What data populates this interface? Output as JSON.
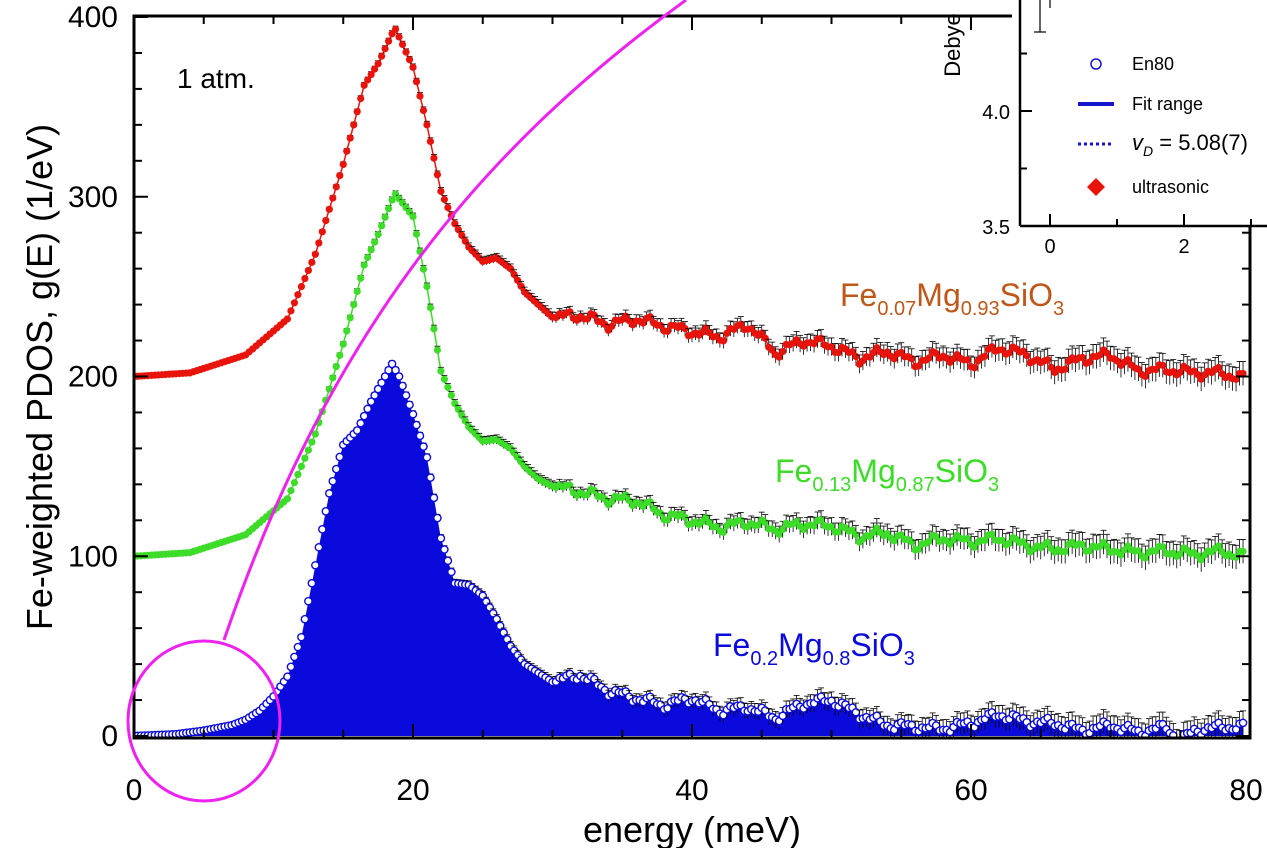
{
  "chart_data": [
    {
      "type": "scatter",
      "title": "",
      "xlabel": "energy (meV)",
      "ylabel": "Fe-weighted PDOS, g(E) (1/eV)",
      "xlim": [
        0,
        80
      ],
      "ylim": [
        -10,
        400
      ],
      "x_ticks": [
        0,
        20,
        40,
        60,
        80
      ],
      "y_ticks": [
        0,
        100,
        200,
        300,
        400
      ],
      "annotation": "1 atm.",
      "grid": false,
      "colors": {
        "red": "#e8140c",
        "green": "#3cdc28",
        "blue": "#0a0adc",
        "magenta": "#ee22ee",
        "red_label": "#c0571a"
      },
      "series": [
        {
          "name_parts": [
            "Fe",
            "0.07",
            "Mg",
            "0.93",
            "SiO",
            "3"
          ],
          "marker": "filled",
          "offset": 200,
          "x": [
            0,
            4,
            8,
            11,
            13,
            15,
            16.5,
            17.5,
            18.7,
            20,
            21,
            22,
            23,
            24,
            25,
            26,
            27,
            28,
            29,
            30,
            32,
            34,
            36,
            38,
            40,
            42,
            44,
            46,
            48,
            50,
            52,
            54,
            56,
            58,
            60,
            62,
            64,
            66,
            68,
            70,
            72,
            74,
            76,
            78,
            79.5
          ],
          "y": [
            200,
            202,
            212,
            232,
            268,
            318,
            362,
            374,
            394,
            372,
            340,
            303,
            285,
            272,
            264,
            266,
            260,
            247,
            240,
            233,
            234,
            229,
            232,
            228,
            225,
            222,
            229,
            213,
            220,
            217,
            210,
            214,
            208,
            212,
            207,
            216,
            212,
            204,
            210,
            212,
            203,
            204,
            202,
            202,
            199
          ]
        },
        {
          "name_parts": [
            "Fe",
            "0.13",
            "Mg",
            "0.87",
            "SiO",
            "3"
          ],
          "marker": "filled",
          "offset": 100,
          "x": [
            0,
            4,
            8,
            11,
            13,
            15,
            16.5,
            17.5,
            18.7,
            20,
            21,
            22,
            23,
            24,
            25,
            26,
            27,
            28,
            29,
            30,
            32,
            34,
            36,
            38,
            40,
            42,
            44,
            46,
            48,
            50,
            52,
            54,
            56,
            58,
            60,
            62,
            64,
            66,
            68,
            70,
            72,
            74,
            76,
            78,
            79.5
          ],
          "y": [
            100,
            102,
            112,
            132,
            168,
            218,
            262,
            279,
            302,
            289,
            250,
            203,
            185,
            172,
            164,
            165,
            160,
            150,
            143,
            139,
            136,
            132,
            131,
            123,
            120,
            116,
            119,
            115,
            118,
            117,
            111,
            113,
            106,
            110,
            108,
            110,
            106,
            104,
            106,
            104,
            102,
            103,
            101,
            103,
            100
          ]
        },
        {
          "name_parts": [
            "Fe",
            "0.2",
            "Mg",
            "0.8",
            "SiO",
            "3"
          ],
          "marker": "open",
          "filled_area": true,
          "offset": 0,
          "x": [
            0,
            3,
            5,
            7,
            8,
            9,
            10,
            11,
            12,
            13,
            14,
            15,
            16,
            17,
            18,
            18.5,
            19,
            20,
            21,
            22,
            23,
            24,
            25,
            26,
            27,
            28,
            29,
            30,
            32,
            34,
            36,
            38,
            40,
            42,
            44,
            46,
            48,
            50,
            52,
            54,
            56,
            58,
            60,
            62,
            64,
            66,
            68,
            70,
            72,
            74,
            75,
            76,
            78,
            79.5
          ],
          "y": [
            0,
            1,
            3,
            6,
            9,
            14,
            22,
            33,
            55,
            95,
            135,
            162,
            170,
            186,
            200,
            207,
            200,
            179,
            155,
            110,
            85,
            84,
            78,
            65,
            50,
            40,
            35,
            30,
            34,
            25,
            21,
            17,
            21,
            14,
            16,
            10,
            18,
            20,
            12,
            6,
            5,
            4,
            7,
            12,
            8,
            7,
            3,
            6,
            2,
            5,
            -3,
            3,
            5,
            5
          ]
        }
      ],
      "guide_circle": {
        "center": [
          5,
          0
        ],
        "note": "highlighted low-energy region"
      }
    },
    {
      "type": "scatter",
      "inset": true,
      "ylabel": "Debye",
      "xlim": [
        -0.7,
        3
      ],
      "ylim": [
        3.5,
        4.6
      ],
      "x_ticks": [
        0,
        2
      ],
      "y_ticks": [
        3.5,
        4.0
      ],
      "legend": {
        "placement": "inside",
        "entries": [
          {
            "label": "En80",
            "symbol": "open-circle",
            "color": "#1515cc"
          },
          {
            "label": "Fit range",
            "symbol": "solid-line",
            "color": "#1515cc"
          },
          {
            "label_parts": [
              "v",
              "D",
              " = 5.08(7)"
            ],
            "symbol": "dotted-line",
            "color": "#1515cc"
          },
          {
            "label": "ultrasonic",
            "symbol": "diamond",
            "color": "#e8140c"
          }
        ]
      }
    }
  ]
}
